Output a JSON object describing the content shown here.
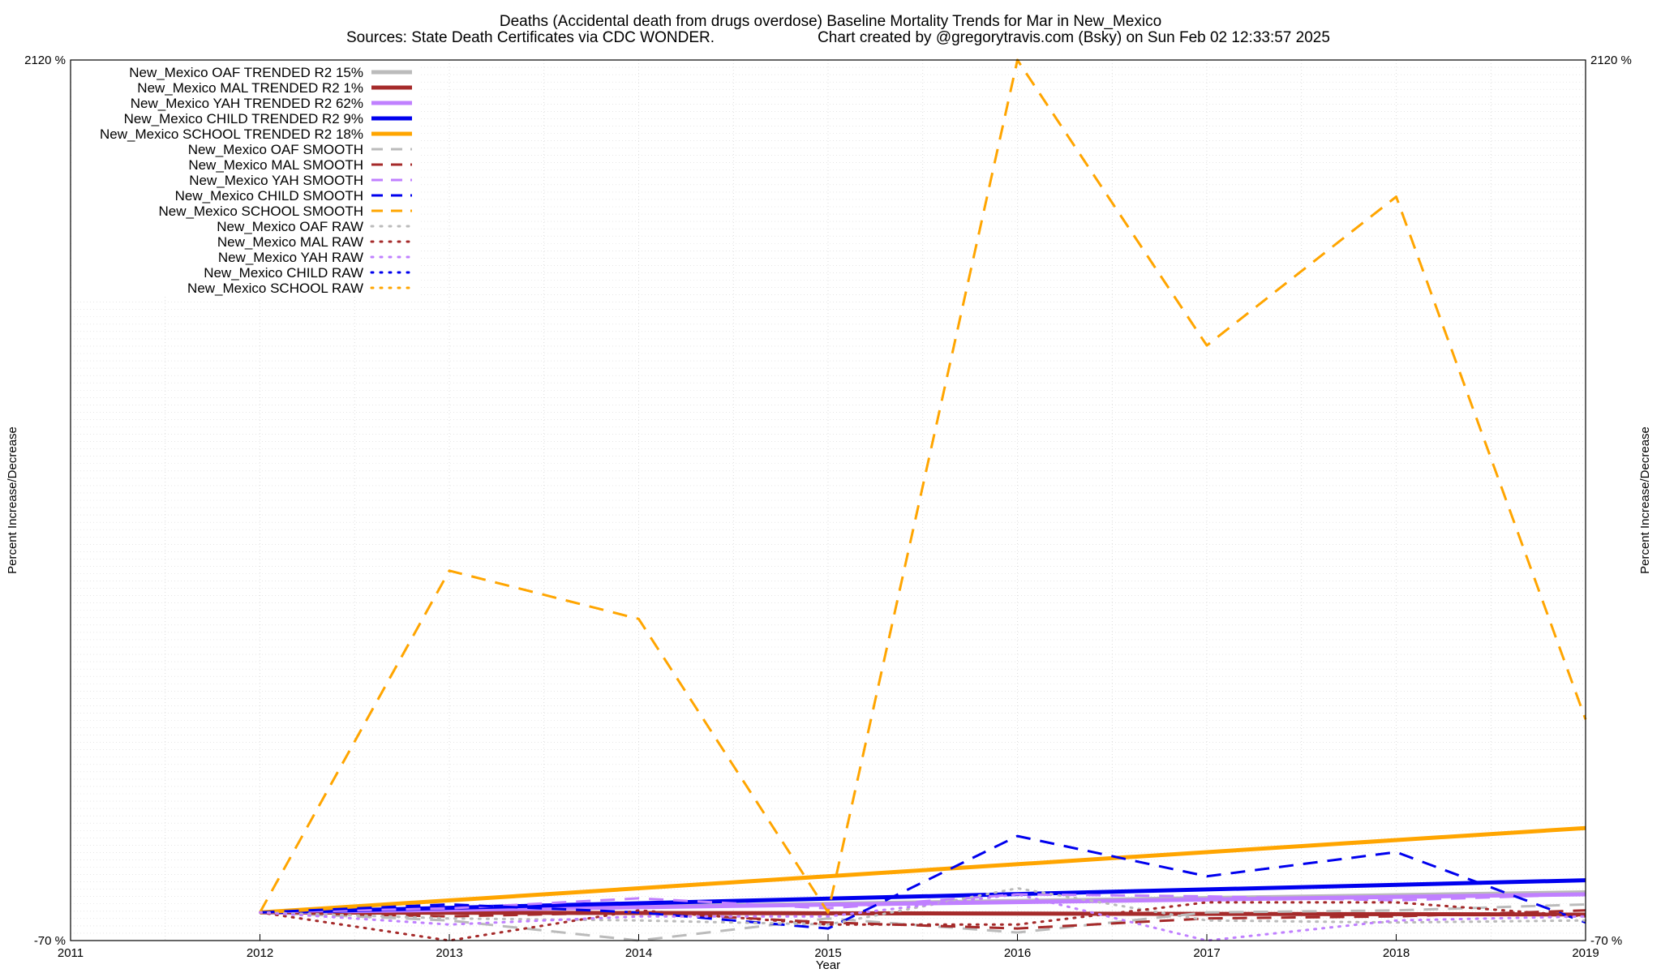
{
  "chart_data": {
    "type": "line",
    "title": "Deaths (Accidental death from drugs overdose)  Baseline Mortality Trends for Mar in New_Mexico",
    "subtitle_left": "Sources: State Death Certificates via CDC WONDER.",
    "subtitle_right": "Chart created by @gregorytravis.com (Bsky) on Sun Feb 02 12:33:57 2025",
    "xlabel": "Year",
    "ylabel_left": "Percent Increase/Decrease",
    "ylabel_right": "Percent Increase/Decrease",
    "xlim": [
      2011,
      2019
    ],
    "ylim": [
      -70,
      2120
    ],
    "x_ticks": [
      "2011",
      "2012",
      "2013",
      "2014",
      "2015",
      "2016",
      "2017",
      "2018",
      "2019"
    ],
    "y_ticks": [
      "2120 %",
      "-70 %"
    ],
    "grid": true,
    "legend_position": "top-left",
    "series": [
      {
        "name": "New_Mexico OAF TRENDED R2  15%",
        "color": "#bbbbbb",
        "style": "solid",
        "x": [
          2012,
          2019
        ],
        "y": [
          0,
          50
        ]
      },
      {
        "name": "New_Mexico MAL TRENDED R2   1%",
        "color": "#a52a2a",
        "style": "solid",
        "x": [
          2012,
          2019
        ],
        "y": [
          0,
          -5
        ]
      },
      {
        "name": "New_Mexico YAH TRENDED R2  62%",
        "color": "#c080ff",
        "style": "solid",
        "x": [
          2012,
          2019
        ],
        "y": [
          0,
          45
        ]
      },
      {
        "name": "New_Mexico CHILD TRENDED R2   9%",
        "color": "#0000ee",
        "style": "solid",
        "x": [
          2012,
          2019
        ],
        "y": [
          0,
          80
        ]
      },
      {
        "name": "New_Mexico SCHOOL TRENDED R2  18%",
        "color": "#ffa500",
        "style": "solid",
        "x": [
          2012,
          2019
        ],
        "y": [
          0,
          210
        ]
      },
      {
        "name": "New_Mexico OAF SMOOTH",
        "color": "#bbbbbb",
        "style": "dashed",
        "x": [
          2012,
          2013,
          2014,
          2015,
          2016,
          2017,
          2018,
          2019
        ],
        "y": [
          0,
          -20,
          -70,
          -15,
          -50,
          0,
          5,
          20
        ]
      },
      {
        "name": "New_Mexico MAL SMOOTH",
        "color": "#a52a2a",
        "style": "dashed",
        "x": [
          2012,
          2013,
          2014,
          2015,
          2016,
          2017,
          2018,
          2019
        ],
        "y": [
          0,
          -10,
          0,
          -25,
          -40,
          -15,
          -10,
          5
        ]
      },
      {
        "name": "New_Mexico YAH SMOOTH",
        "color": "#c080ff",
        "style": "dashed",
        "x": [
          2012,
          2013,
          2014,
          2015,
          2016,
          2017,
          2018,
          2019
        ],
        "y": [
          0,
          10,
          35,
          10,
          45,
          40,
          30,
          45
        ]
      },
      {
        "name": "New_Mexico CHILD SMOOTH",
        "color": "#0000ee",
        "style": "dashed",
        "x": [
          2012,
          2013,
          2014,
          2015,
          2016,
          2017,
          2018,
          2019
        ],
        "y": [
          0,
          20,
          0,
          -40,
          190,
          90,
          150,
          -25
        ]
      },
      {
        "name": "New_Mexico SCHOOL SMOOTH",
        "color": "#ffa500",
        "style": "dashed",
        "x": [
          2012,
          2013,
          2014,
          2015,
          2016,
          2017,
          2018,
          2019
        ],
        "y": [
          0,
          850,
          730,
          0,
          2120,
          1410,
          1780,
          480
        ]
      },
      {
        "name": "New_Mexico OAF RAW",
        "color": "#bbbbbb",
        "style": "dotted",
        "x": [
          2012,
          2013,
          2014,
          2015,
          2016,
          2017,
          2018,
          2019
        ],
        "y": [
          0,
          -15,
          -20,
          -30,
          60,
          -20,
          -25,
          -20
        ]
      },
      {
        "name": "New_Mexico MAL RAW",
        "color": "#a52a2a",
        "style": "dotted",
        "x": [
          2012,
          2013,
          2014,
          2015,
          2016,
          2017,
          2018,
          2019
        ],
        "y": [
          0,
          -70,
          5,
          -30,
          -30,
          25,
          25,
          -10
        ]
      },
      {
        "name": "New_Mexico YAH RAW",
        "color": "#c080ff",
        "style": "dotted",
        "x": [
          2012,
          2013,
          2014,
          2015,
          2016,
          2017,
          2018,
          2019
        ],
        "y": [
          0,
          -30,
          -10,
          -10,
          45,
          -70,
          -20,
          -10
        ]
      },
      {
        "name": "New_Mexico CHILD RAW",
        "color": "#0000ee",
        "style": "dotted",
        "x": [],
        "y": []
      },
      {
        "name": "New_Mexico SCHOOL RAW",
        "color": "#ffa500",
        "style": "dotted",
        "x": [],
        "y": []
      }
    ]
  }
}
